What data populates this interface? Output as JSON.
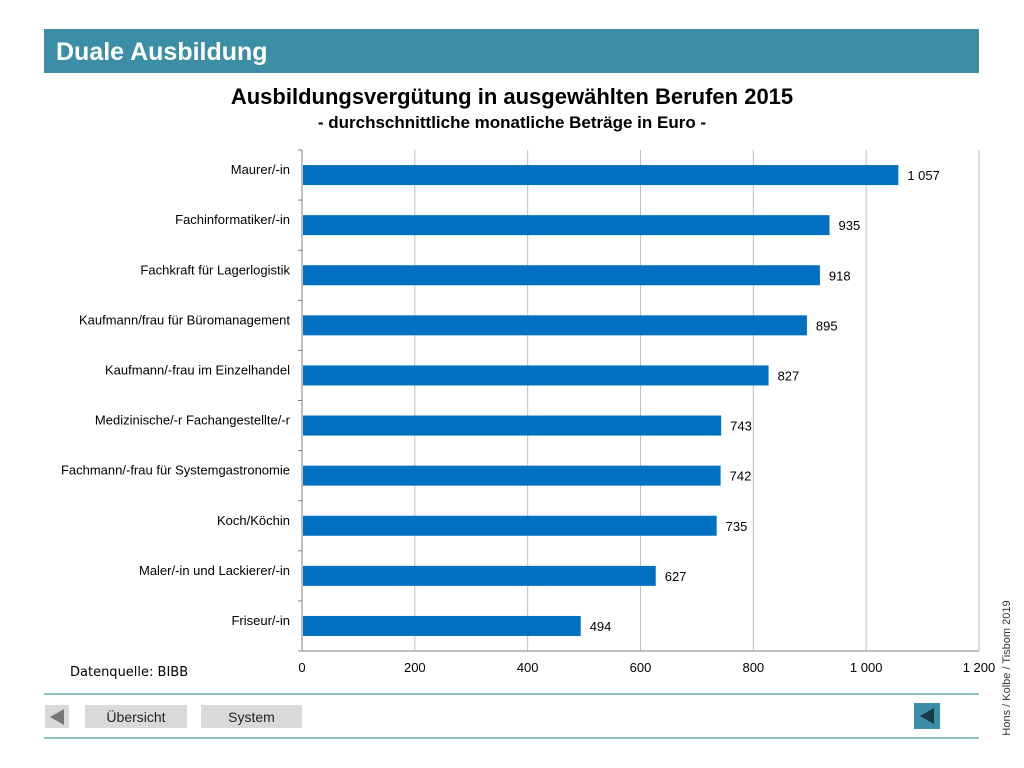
{
  "header": {
    "title": "Duale Ausbildung"
  },
  "chart_data": {
    "type": "bar",
    "orientation": "horizontal",
    "title": "Ausbildungsvergütung in ausgewählten Berufen 2015",
    "subtitle": "- durchschnittliche monatliche Beträge in Euro -",
    "categories": [
      "Maurer/-in",
      "Fachinformatiker/-in",
      "Fachkraft für Lagerlogistik",
      "Kaufmann/frau für Büromanagement",
      "Kaufmann/-frau im Einzelhandel",
      "Medizinische/-r Fachangestellte/-r",
      "Fachmann/-frau für Systemgastronomie",
      "Koch/Köchin",
      "Maler/-in und Lackierer/-in",
      "Friseur/-in"
    ],
    "values": [
      1057,
      935,
      918,
      895,
      827,
      743,
      742,
      735,
      627,
      494
    ],
    "value_labels": [
      "1 057",
      "935",
      "918",
      "895",
      "827",
      "743",
      "742",
      "735",
      "627",
      "494"
    ],
    "xlim": [
      0,
      1200
    ],
    "ticks": [
      0,
      200,
      400,
      600,
      800,
      1000,
      1200
    ],
    "tick_labels": [
      "0",
      "200",
      "400",
      "600",
      "800",
      "1 000",
      "1 200"
    ],
    "grid": "vertical",
    "bar_color": "#0070c0"
  },
  "footer": {
    "source": "Datenquelle: BIBB",
    "credit": "Hons / Kolbe / Tisbom 2019",
    "nav": {
      "overview_label": "Übersicht",
      "system_label": "System"
    }
  }
}
